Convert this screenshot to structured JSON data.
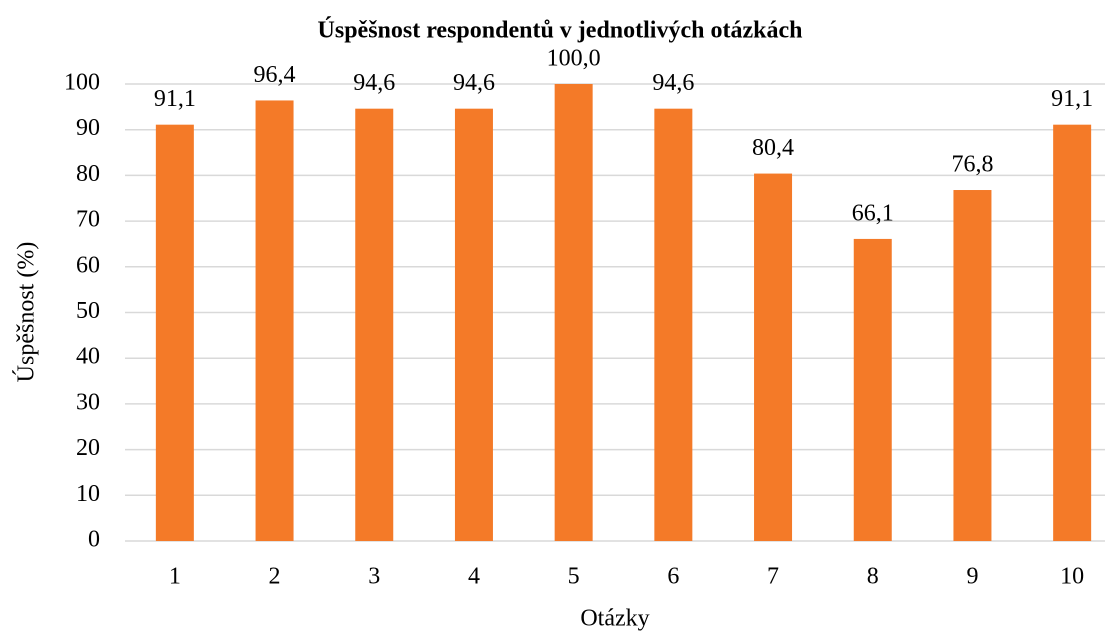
{
  "chart_data": {
    "type": "bar",
    "title": "Úspěšnost respondentů v jednotlivých otázkách",
    "x_label": "Otázky",
    "y_label": "Úspěšnost (%)",
    "categories": [
      "1",
      "2",
      "3",
      "4",
      "5",
      "6",
      "7",
      "8",
      "9",
      "10"
    ],
    "values": [
      91.1,
      96.4,
      94.6,
      94.6,
      100.0,
      94.6,
      80.4,
      66.1,
      76.8,
      91.1
    ],
    "value_labels": [
      "91,1",
      "96,4",
      "94,6",
      "94,6",
      "100,0",
      "94,6",
      "80,4",
      "66,1",
      "76,8",
      "91,1"
    ],
    "color": "#f47a28",
    "ylim": [
      0,
      100
    ],
    "yticks": [
      0,
      10,
      20,
      30,
      40,
      50,
      60,
      70,
      80,
      90,
      100
    ],
    "grid": true
  }
}
